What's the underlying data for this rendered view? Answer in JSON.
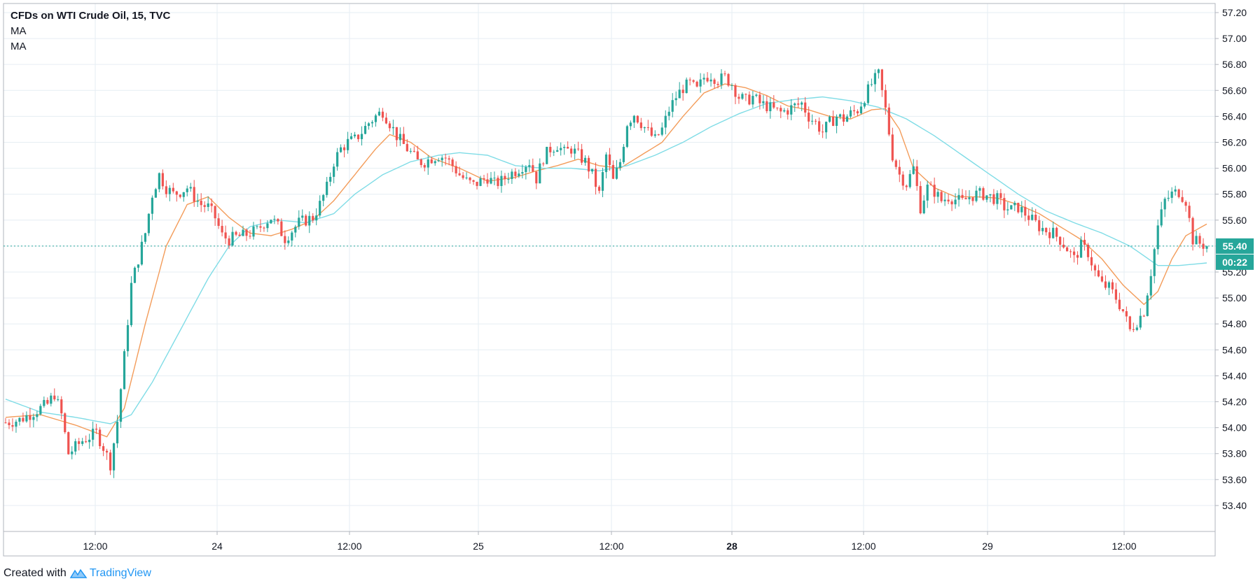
{
  "header": {
    "title": "CFDs on WTI Crude Oil, 15, TVC",
    "indicators": [
      "MA",
      "MA"
    ]
  },
  "footer": {
    "created_with": "Created with",
    "brand": "TradingView"
  },
  "colors": {
    "up": "#26a69a",
    "down": "#ef5350",
    "ma_fast": "#f39c5a",
    "ma_slow": "#7fdce6",
    "grid": "#e6eef3",
    "price_badge": "#26a69a"
  },
  "chart_data": {
    "type": "candlestick",
    "title": "CFDs on WTI Crude Oil, 15, TVC",
    "x_ticks": [
      "12:00",
      "24",
      "12:00",
      "25",
      "12:00",
      "28",
      "12:00",
      "29",
      "12:00"
    ],
    "y_ticks": [
      53.4,
      53.6,
      53.8,
      54.0,
      54.2,
      54.4,
      54.6,
      54.8,
      55.0,
      55.2,
      55.4,
      55.6,
      55.8,
      56.0,
      56.2,
      56.4,
      56.6,
      56.8,
      57.0,
      57.2
    ],
    "ylim": [
      53.2,
      57.27
    ],
    "grid": true,
    "last_price": "55.40",
    "countdown": "00:22",
    "price_path": [
      [
        0,
        54.04
      ],
      [
        4,
        54.06
      ],
      [
        8,
        54.12
      ],
      [
        12,
        54.18
      ],
      [
        14,
        54.26
      ],
      [
        16,
        54.1
      ],
      [
        18,
        53.8
      ],
      [
        22,
        53.9
      ],
      [
        26,
        53.96
      ],
      [
        28,
        53.85
      ],
      [
        30,
        53.72
      ],
      [
        32,
        54.05
      ],
      [
        34,
        54.55
      ],
      [
        36,
        55.1
      ],
      [
        38,
        55.3
      ],
      [
        40,
        55.5
      ],
      [
        42,
        55.8
      ],
      [
        44,
        55.95
      ],
      [
        46,
        55.85
      ],
      [
        48,
        55.8
      ],
      [
        50,
        55.82
      ],
      [
        52,
        55.85
      ],
      [
        54,
        55.78
      ],
      [
        56,
        55.72
      ],
      [
        58,
        55.7
      ],
      [
        60,
        55.62
      ],
      [
        62,
        55.48
      ],
      [
        64,
        55.45
      ],
      [
        66,
        55.47
      ],
      [
        68,
        55.48
      ],
      [
        70,
        55.5
      ],
      [
        72,
        55.52
      ],
      [
        74,
        55.58
      ],
      [
        76,
        55.62
      ],
      [
        78,
        55.55
      ],
      [
        80,
        55.46
      ],
      [
        82,
        55.52
      ],
      [
        84,
        55.58
      ],
      [
        86,
        55.6
      ],
      [
        88,
        55.62
      ],
      [
        90,
        55.72
      ],
      [
        92,
        55.85
      ],
      [
        94,
        56.05
      ],
      [
        96,
        56.15
      ],
      [
        98,
        56.2
      ],
      [
        100,
        56.22
      ],
      [
        102,
        56.28
      ],
      [
        104,
        56.35
      ],
      [
        106,
        56.4
      ],
      [
        108,
        56.44
      ],
      [
        110,
        56.35
      ],
      [
        112,
        56.25
      ],
      [
        114,
        56.18
      ],
      [
        116,
        56.12
      ],
      [
        118,
        56.05
      ],
      [
        120,
        56.05
      ],
      [
        122,
        56.08
      ],
      [
        124,
        56.1
      ],
      [
        126,
        56.08
      ],
      [
        128,
        56.02
      ],
      [
        130,
        55.95
      ],
      [
        132,
        55.9
      ],
      [
        134,
        55.87
      ],
      [
        136,
        55.9
      ],
      [
        138,
        55.93
      ],
      [
        140,
        55.88
      ],
      [
        142,
        55.9
      ],
      [
        144,
        55.95
      ],
      [
        146,
        55.98
      ],
      [
        148,
        56.02
      ],
      [
        150,
        56.05
      ],
      [
        152,
        55.92
      ],
      [
        154,
        56.08
      ],
      [
        156,
        56.15
      ],
      [
        158,
        56.18
      ],
      [
        160,
        56.12
      ],
      [
        162,
        56.15
      ],
      [
        164,
        56.1
      ],
      [
        166,
        56.05
      ],
      [
        168,
        55.95
      ],
      [
        170,
        55.8
      ],
      [
        172,
        56.1
      ],
      [
        174,
        55.9
      ],
      [
        176,
        56.05
      ],
      [
        178,
        56.35
      ],
      [
        180,
        56.42
      ],
      [
        182,
        56.35
      ],
      [
        184,
        56.28
      ],
      [
        186,
        56.22
      ],
      [
        188,
        56.3
      ],
      [
        190,
        56.45
      ],
      [
        192,
        56.55
      ],
      [
        194,
        56.62
      ],
      [
        196,
        56.65
      ],
      [
        198,
        56.6
      ],
      [
        200,
        56.7
      ],
      [
        202,
        56.72
      ],
      [
        204,
        56.68
      ],
      [
        206,
        56.7
      ],
      [
        208,
        56.65
      ],
      [
        210,
        56.55
      ],
      [
        212,
        56.52
      ],
      [
        214,
        56.55
      ],
      [
        216,
        56.5
      ],
      [
        218,
        56.48
      ],
      [
        220,
        56.45
      ],
      [
        222,
        56.43
      ],
      [
        224,
        56.45
      ],
      [
        226,
        56.48
      ],
      [
        228,
        56.5
      ],
      [
        230,
        56.4
      ],
      [
        232,
        56.35
      ],
      [
        234,
        56.28
      ],
      [
        236,
        56.35
      ],
      [
        238,
        56.4
      ],
      [
        240,
        56.38
      ],
      [
        242,
        56.42
      ],
      [
        244,
        56.45
      ],
      [
        246,
        56.55
      ],
      [
        248,
        56.65
      ],
      [
        250,
        56.72
      ],
      [
        252,
        56.45
      ],
      [
        254,
        56.1
      ],
      [
        256,
        55.95
      ],
      [
        258,
        55.88
      ],
      [
        260,
        56.0
      ],
      [
        262,
        55.7
      ],
      [
        264,
        55.85
      ],
      [
        266,
        55.82
      ],
      [
        268,
        55.75
      ],
      [
        270,
        55.78
      ],
      [
        272,
        55.76
      ],
      [
        274,
        55.74
      ],
      [
        276,
        55.78
      ],
      [
        278,
        55.8
      ],
      [
        280,
        55.8
      ],
      [
        282,
        55.78
      ],
      [
        284,
        55.76
      ],
      [
        286,
        55.7
      ],
      [
        288,
        55.68
      ],
      [
        290,
        55.7
      ],
      [
        292,
        55.65
      ],
      [
        294,
        55.6
      ],
      [
        296,
        55.55
      ],
      [
        298,
        55.52
      ],
      [
        300,
        55.5
      ],
      [
        302,
        55.45
      ],
      [
        304,
        55.38
      ],
      [
        306,
        55.3
      ],
      [
        308,
        55.4
      ],
      [
        310,
        55.35
      ],
      [
        312,
        55.2
      ],
      [
        314,
        55.1
      ],
      [
        316,
        55.08
      ],
      [
        318,
        55.0
      ],
      [
        320,
        54.9
      ],
      [
        322,
        54.75
      ],
      [
        324,
        54.82
      ],
      [
        326,
        54.9
      ],
      [
        328,
        55.2
      ],
      [
        330,
        55.55
      ],
      [
        332,
        55.75
      ],
      [
        334,
        55.8
      ],
      [
        336,
        55.82
      ],
      [
        338,
        55.75
      ],
      [
        340,
        55.45
      ],
      [
        342,
        55.42
      ],
      [
        344,
        55.4
      ]
    ],
    "series": [
      {
        "name": "MA",
        "color": "#f39c5a",
        "values": [
          [
            0,
            54.08
          ],
          [
            10,
            54.1
          ],
          [
            20,
            54.02
          ],
          [
            29,
            53.93
          ],
          [
            34,
            54.15
          ],
          [
            40,
            54.8
          ],
          [
            46,
            55.4
          ],
          [
            52,
            55.72
          ],
          [
            58,
            55.78
          ],
          [
            64,
            55.62
          ],
          [
            70,
            55.5
          ],
          [
            76,
            55.48
          ],
          [
            82,
            55.53
          ],
          [
            88,
            55.6
          ],
          [
            94,
            55.75
          ],
          [
            100,
            55.95
          ],
          [
            106,
            56.15
          ],
          [
            110,
            56.26
          ],
          [
            116,
            56.2
          ],
          [
            122,
            56.08
          ],
          [
            130,
            56.0
          ],
          [
            138,
            55.9
          ],
          [
            146,
            55.93
          ],
          [
            152,
            55.98
          ],
          [
            158,
            56.02
          ],
          [
            164,
            56.07
          ],
          [
            170,
            56.02
          ],
          [
            176,
            56.0
          ],
          [
            182,
            56.1
          ],
          [
            188,
            56.2
          ],
          [
            194,
            56.4
          ],
          [
            200,
            56.58
          ],
          [
            206,
            56.65
          ],
          [
            212,
            56.62
          ],
          [
            218,
            56.56
          ],
          [
            224,
            56.48
          ],
          [
            230,
            56.45
          ],
          [
            236,
            56.4
          ],
          [
            242,
            56.38
          ],
          [
            248,
            56.45
          ],
          [
            252,
            56.46
          ],
          [
            256,
            56.3
          ],
          [
            260,
            56.0
          ],
          [
            266,
            55.85
          ],
          [
            272,
            55.78
          ],
          [
            278,
            55.78
          ],
          [
            284,
            55.77
          ],
          [
            290,
            55.72
          ],
          [
            296,
            55.65
          ],
          [
            302,
            55.55
          ],
          [
            308,
            55.45
          ],
          [
            314,
            55.3
          ],
          [
            320,
            55.1
          ],
          [
            326,
            54.95
          ],
          [
            330,
            55.05
          ],
          [
            334,
            55.3
          ],
          [
            338,
            55.48
          ],
          [
            344,
            55.57
          ]
        ]
      },
      {
        "name": "MA",
        "color": "#7fdce6",
        "values": [
          [
            0,
            54.22
          ],
          [
            10,
            54.12
          ],
          [
            20,
            54.08
          ],
          [
            30,
            54.03
          ],
          [
            36,
            54.1
          ],
          [
            42,
            54.35
          ],
          [
            50,
            54.75
          ],
          [
            58,
            55.15
          ],
          [
            64,
            55.4
          ],
          [
            70,
            55.55
          ],
          [
            78,
            55.6
          ],
          [
            86,
            55.58
          ],
          [
            94,
            55.65
          ],
          [
            100,
            55.8
          ],
          [
            108,
            55.95
          ],
          [
            116,
            56.05
          ],
          [
            124,
            56.1
          ],
          [
            130,
            56.12
          ],
          [
            138,
            56.1
          ],
          [
            146,
            56.02
          ],
          [
            154,
            56.0
          ],
          [
            162,
            56.0
          ],
          [
            170,
            55.98
          ],
          [
            178,
            56.02
          ],
          [
            186,
            56.1
          ],
          [
            194,
            56.2
          ],
          [
            202,
            56.32
          ],
          [
            210,
            56.42
          ],
          [
            218,
            56.5
          ],
          [
            226,
            56.53
          ],
          [
            234,
            56.55
          ],
          [
            242,
            56.52
          ],
          [
            250,
            56.47
          ],
          [
            258,
            56.38
          ],
          [
            266,
            56.25
          ],
          [
            274,
            56.1
          ],
          [
            282,
            55.95
          ],
          [
            290,
            55.8
          ],
          [
            298,
            55.67
          ],
          [
            306,
            55.58
          ],
          [
            314,
            55.5
          ],
          [
            322,
            55.4
          ],
          [
            330,
            55.25
          ],
          [
            336,
            55.25
          ],
          [
            344,
            55.27
          ]
        ]
      }
    ]
  }
}
